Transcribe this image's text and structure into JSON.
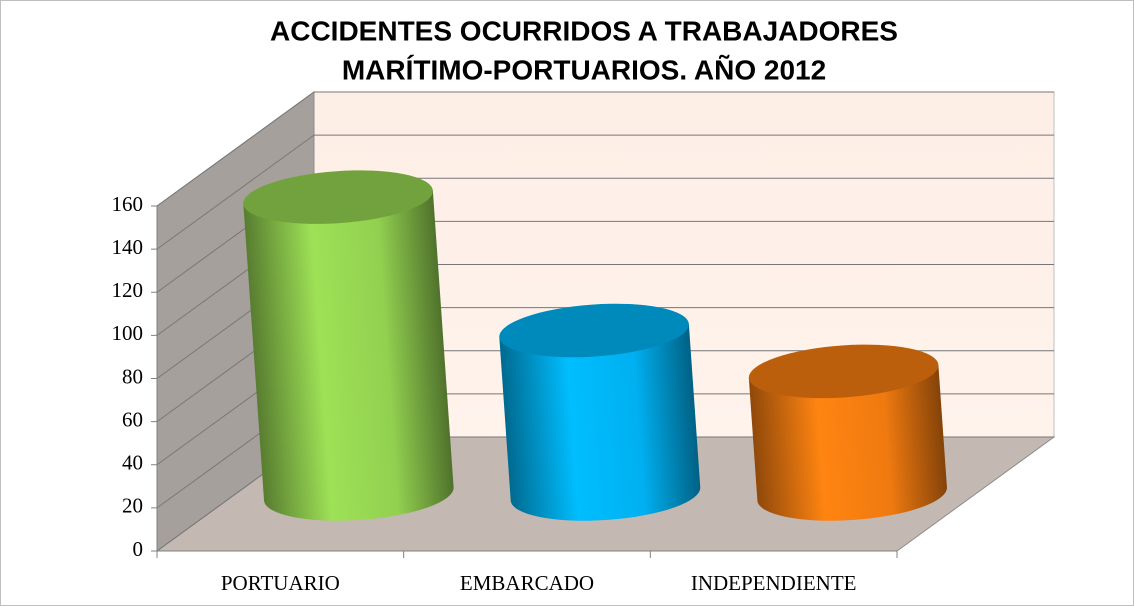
{
  "chart_data": {
    "type": "bar3d",
    "title": [
      "ACCIDENTES OCURRIDOS A TRABAJADORES",
      "MARÍTIMO-PORTUARIOS. AÑO 2012"
    ],
    "categories": [
      "PORTUARIO",
      "EMBARCADO",
      "INDEPENDIENTE"
    ],
    "values": [
      138,
      76,
      57
    ],
    "colors": [
      "#92d050",
      "#00b0f0",
      "#f07a10"
    ],
    "ylim": [
      0,
      160
    ],
    "yticks": [
      0,
      20,
      40,
      60,
      80,
      100,
      120,
      140,
      160
    ],
    "grid": true
  }
}
